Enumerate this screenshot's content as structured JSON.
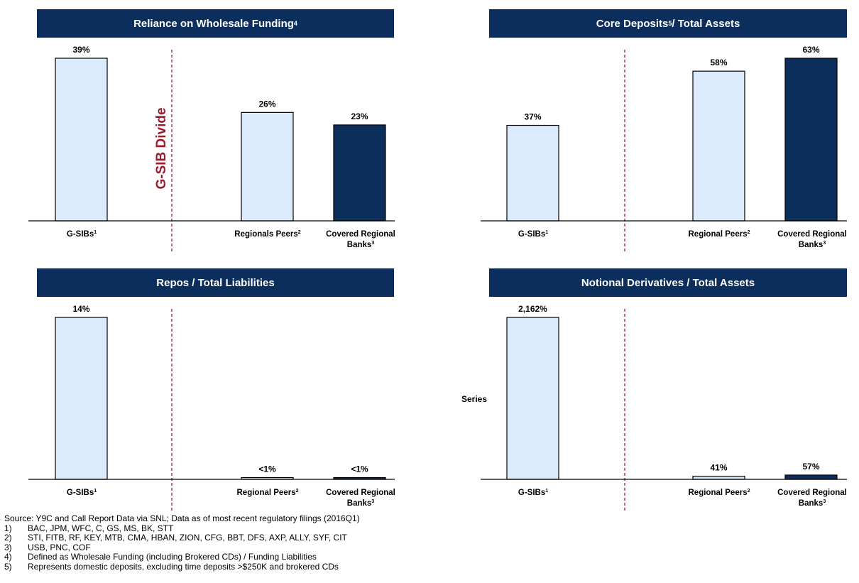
{
  "colors": {
    "header": "#0b2e5c",
    "light_bar": "#dbeafc",
    "dark_bar": "#0b2e5c",
    "divider": "#9b1b2b"
  },
  "divider_label": "G-SIB Divide",
  "chart_data": [
    {
      "type": "bar",
      "title": "Reliance on Wholesale Funding",
      "title_sup": "4",
      "categories": [
        {
          "label": "G-SIBs",
          "sup": "1"
        },
        {
          "label": "Regionals Peers",
          "sup": "2"
        },
        {
          "label": "Covered Regional Banks",
          "sup": "3"
        }
      ],
      "values": [
        39,
        26,
        23
      ],
      "value_labels": [
        "39%",
        "26%",
        "23%"
      ],
      "ylim": [
        0,
        39
      ],
      "show_divider_label": true,
      "ylabel": ""
    },
    {
      "type": "bar",
      "title": "Core Deposits",
      "title_sup": "5",
      "title_rest": " / Total Assets",
      "categories": [
        {
          "label": "G-SIBs",
          "sup": "1"
        },
        {
          "label": "Regional Peers",
          "sup": "2"
        },
        {
          "label": "Covered Regional Banks",
          "sup": "3"
        }
      ],
      "values": [
        37,
        58,
        63
      ],
      "value_labels": [
        "37%",
        "58%",
        "63%"
      ],
      "ylim": [
        0,
        63
      ],
      "show_divider_label": false,
      "ylabel": ""
    },
    {
      "type": "bar",
      "title": "Repos / Total Liabilities",
      "categories": [
        {
          "label": "G-SIBs",
          "sup": "1"
        },
        {
          "label": "Regional Peers",
          "sup": "2"
        },
        {
          "label": "Covered Regional Banks",
          "sup": "3"
        }
      ],
      "values": [
        14,
        0.1,
        0.05
      ],
      "value_labels": [
        "14%",
        "<1%",
        "<1%"
      ],
      "ylim": [
        0,
        14
      ],
      "show_divider_label": false,
      "ylabel": ""
    },
    {
      "type": "bar",
      "title": "Notional Derivatives / Total Assets",
      "categories": [
        {
          "label": "G-SIBs",
          "sup": "1"
        },
        {
          "label": "Regional Peers",
          "sup": "2"
        },
        {
          "label": "Covered Regional Banks",
          "sup": "3"
        }
      ],
      "values": [
        2162,
        41,
        57
      ],
      "value_labels": [
        "2,162%",
        "41%",
        "57%"
      ],
      "ylim": [
        0,
        2162
      ],
      "show_divider_label": false,
      "ylabel": "Series"
    }
  ],
  "footnotes": {
    "source": "Source: Y9C and Call Report Data via SNL; Data as of most recent regulatory filings (2016Q1)",
    "notes": [
      {
        "num": "1)",
        "text": "BAC, JPM, WFC, C, GS, MS, BK, STT"
      },
      {
        "num": "2)",
        "text": "STI, FITB, RF, KEY, MTB, CMA, HBAN, ZION, CFG, BBT, DFS, AXP, ALLY, SYF, CIT"
      },
      {
        "num": "3)",
        "text": "USB, PNC, COF"
      },
      {
        "num": "4)",
        "text": "Defined as Wholesale Funding (including Brokered CDs) / Funding Liabilities"
      },
      {
        "num": "5)",
        "text": "Represents domestic deposits, excluding time deposits >$250K and brokered CDs"
      }
    ]
  }
}
